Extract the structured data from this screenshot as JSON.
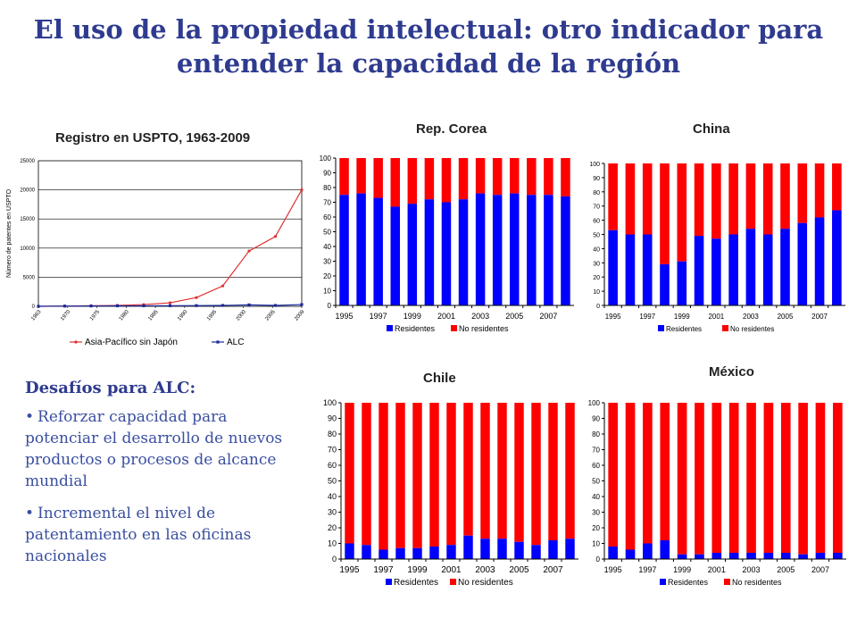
{
  "page": {
    "title_line1": "El uso de la propiedad intelectual: otro indicador para",
    "title_line2": "entender la capacidad de la región"
  },
  "challenges": {
    "heading": "Desafíos para ALC:",
    "bullet_char": "•",
    "items": [
      "Reforzar capacidad para potenciar el desarrollo de nuevos productos o procesos de alcance mundial",
      "Incremental el nivel de patentamiento en las oficinas nacionales"
    ]
  },
  "colors": {
    "residents": "#0000ff",
    "nonresidents": "#ff0000",
    "asia_line": "#e03030",
    "alc_line": "#1a2a99"
  },
  "chart_data": [
    {
      "id": "uspto",
      "type": "line",
      "title": "Registro en USPTO, 1963-2009",
      "ylabel": "Número de patentes en USPTO",
      "ylim": [
        0,
        25000
      ],
      "yticks": [
        "0",
        "5000",
        "10000",
        "15000",
        "20000",
        "25000"
      ],
      "xticks": [
        "1963",
        "1970",
        "1975",
        "1980",
        "1985",
        "1990",
        "1995",
        "2000",
        "2005",
        "2009"
      ],
      "series": [
        {
          "name": "Asia-Pacífico sin Japón",
          "values": [
            0,
            50,
            100,
            150,
            300,
            600,
            1500,
            3500,
            9500,
            12000,
            20000
          ]
        },
        {
          "name": "ALC",
          "values": [
            0,
            40,
            60,
            80,
            90,
            100,
            120,
            150,
            250,
            150,
            300
          ]
        }
      ]
    },
    {
      "id": "corea",
      "type": "bar",
      "stacked": true,
      "title": "Rep. Corea",
      "ylim": [
        0,
        100
      ],
      "yticks": [
        "0",
        "10",
        "20",
        "30",
        "40",
        "50",
        "60",
        "70",
        "80",
        "90",
        "100"
      ],
      "categories": [
        "1995",
        "1996",
        "1997",
        "1998",
        "1999",
        "2000",
        "2001",
        "2002",
        "2003",
        "2004",
        "2005",
        "2006",
        "2007",
        "2008"
      ],
      "xlabels": [
        "1995",
        "1997",
        "1999",
        "2001",
        "2003",
        "2005",
        "2007"
      ],
      "legend": [
        "Residentes",
        "No residentes"
      ],
      "residentes": [
        75,
        76,
        73,
        67,
        69,
        72,
        70,
        72,
        76,
        75,
        76,
        75,
        75,
        74
      ]
    },
    {
      "id": "china",
      "type": "bar",
      "stacked": true,
      "title": "China",
      "ylim": [
        0,
        100
      ],
      "yticks": [
        "0",
        "10",
        "20",
        "30",
        "40",
        "50",
        "60",
        "70",
        "80",
        "90",
        "100"
      ],
      "categories": [
        "1995",
        "1996",
        "1997",
        "1998",
        "1999",
        "2000",
        "2001",
        "2002",
        "2003",
        "2004",
        "2005",
        "2006",
        "2007",
        "2008"
      ],
      "xlabels": [
        "1995",
        "1997",
        "1999",
        "2001",
        "2003",
        "2005",
        "2007"
      ],
      "legend": [
        "Residentes",
        "No residentes"
      ],
      "residentes": [
        53,
        50,
        50,
        29,
        31,
        49,
        47,
        50,
        54,
        50,
        54,
        58,
        62,
        67
      ]
    },
    {
      "id": "chile",
      "type": "bar",
      "stacked": true,
      "title": "Chile",
      "ylim": [
        0,
        100
      ],
      "yticks": [
        "0",
        "10",
        "20",
        "30",
        "40",
        "50",
        "60",
        "70",
        "80",
        "90",
        "100"
      ],
      "categories": [
        "1995",
        "1996",
        "1997",
        "1998",
        "1999",
        "2000",
        "2001",
        "2002",
        "2003",
        "2004",
        "2005",
        "2006",
        "2007",
        "2008"
      ],
      "xlabels": [
        "1995",
        "1997",
        "1999",
        "2001",
        "2003",
        "2005",
        "2007"
      ],
      "legend": [
        "Residentes",
        "No residentes"
      ],
      "residentes": [
        10,
        9,
        6,
        7,
        7,
        8,
        9,
        15,
        13,
        13,
        11,
        9,
        12,
        13
      ]
    },
    {
      "id": "mexico",
      "type": "bar",
      "stacked": true,
      "title": "México",
      "ylim": [
        0,
        100
      ],
      "yticks": [
        "0",
        "10",
        "20",
        "30",
        "40",
        "50",
        "60",
        "70",
        "80",
        "90",
        "100"
      ],
      "categories": [
        "1995",
        "1996",
        "1997",
        "1998",
        "1999",
        "2000",
        "2001",
        "2002",
        "2003",
        "2004",
        "2005",
        "2006",
        "2007",
        "2008"
      ],
      "xlabels": [
        "1995",
        "1997",
        "1999",
        "2001",
        "2003",
        "2005",
        "2007"
      ],
      "legend": [
        "Residentes",
        "No residentes"
      ],
      "residentes": [
        8,
        6,
        10,
        12,
        3,
        3,
        4,
        4,
        4,
        4,
        4,
        3,
        4,
        4
      ]
    }
  ]
}
